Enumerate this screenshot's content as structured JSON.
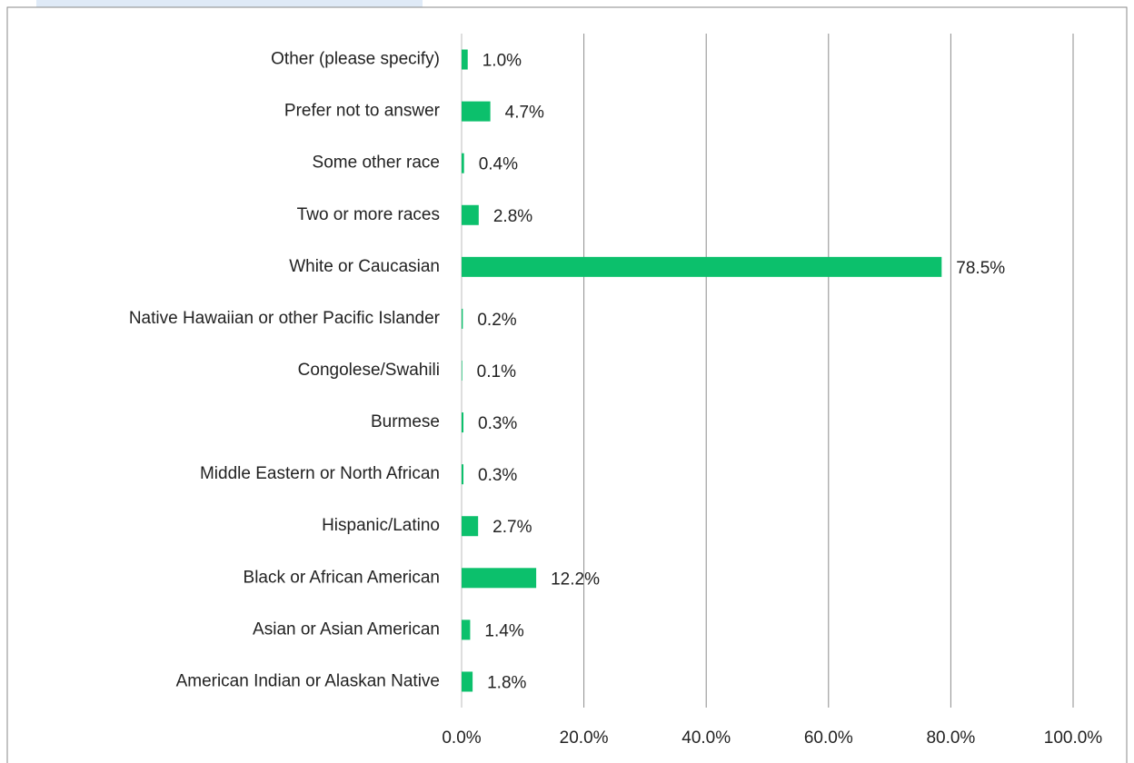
{
  "chart_data": {
    "type": "bar",
    "orientation": "horizontal",
    "categories": [
      "Other (please specify)",
      "Prefer not to answer",
      "Some other race",
      "Two or more races",
      "White or Caucasian",
      "Native Hawaiian or other Pacific Islander",
      "Congolese/Swahili",
      "Burmese",
      "Middle Eastern or North African",
      "Hispanic/Latino",
      "Black or African American",
      "Asian or Asian American",
      "American Indian or Alaskan Native"
    ],
    "values": [
      1.0,
      4.7,
      0.4,
      2.8,
      78.5,
      0.2,
      0.1,
      0.3,
      0.3,
      2.7,
      12.2,
      1.4,
      1.8
    ],
    "value_labels": [
      "1.0%",
      "4.7%",
      "0.4%",
      "2.8%",
      "78.5%",
      "0.2%",
      "0.1%",
      "0.3%",
      "0.3%",
      "2.7%",
      "12.2%",
      "1.4%",
      "1.8%"
    ],
    "color": "#0cc06c",
    "xlim": [
      0,
      100
    ],
    "xticks": [
      {
        "value": 0,
        "label": "0.0%"
      },
      {
        "value": 20,
        "label": "20.0%"
      },
      {
        "value": 40,
        "label": "40.0%"
      },
      {
        "value": 60,
        "label": "60.0%"
      },
      {
        "value": 80,
        "label": "80.0%"
      },
      {
        "value": 100,
        "label": "100.0%"
      }
    ],
    "grid": true
  }
}
